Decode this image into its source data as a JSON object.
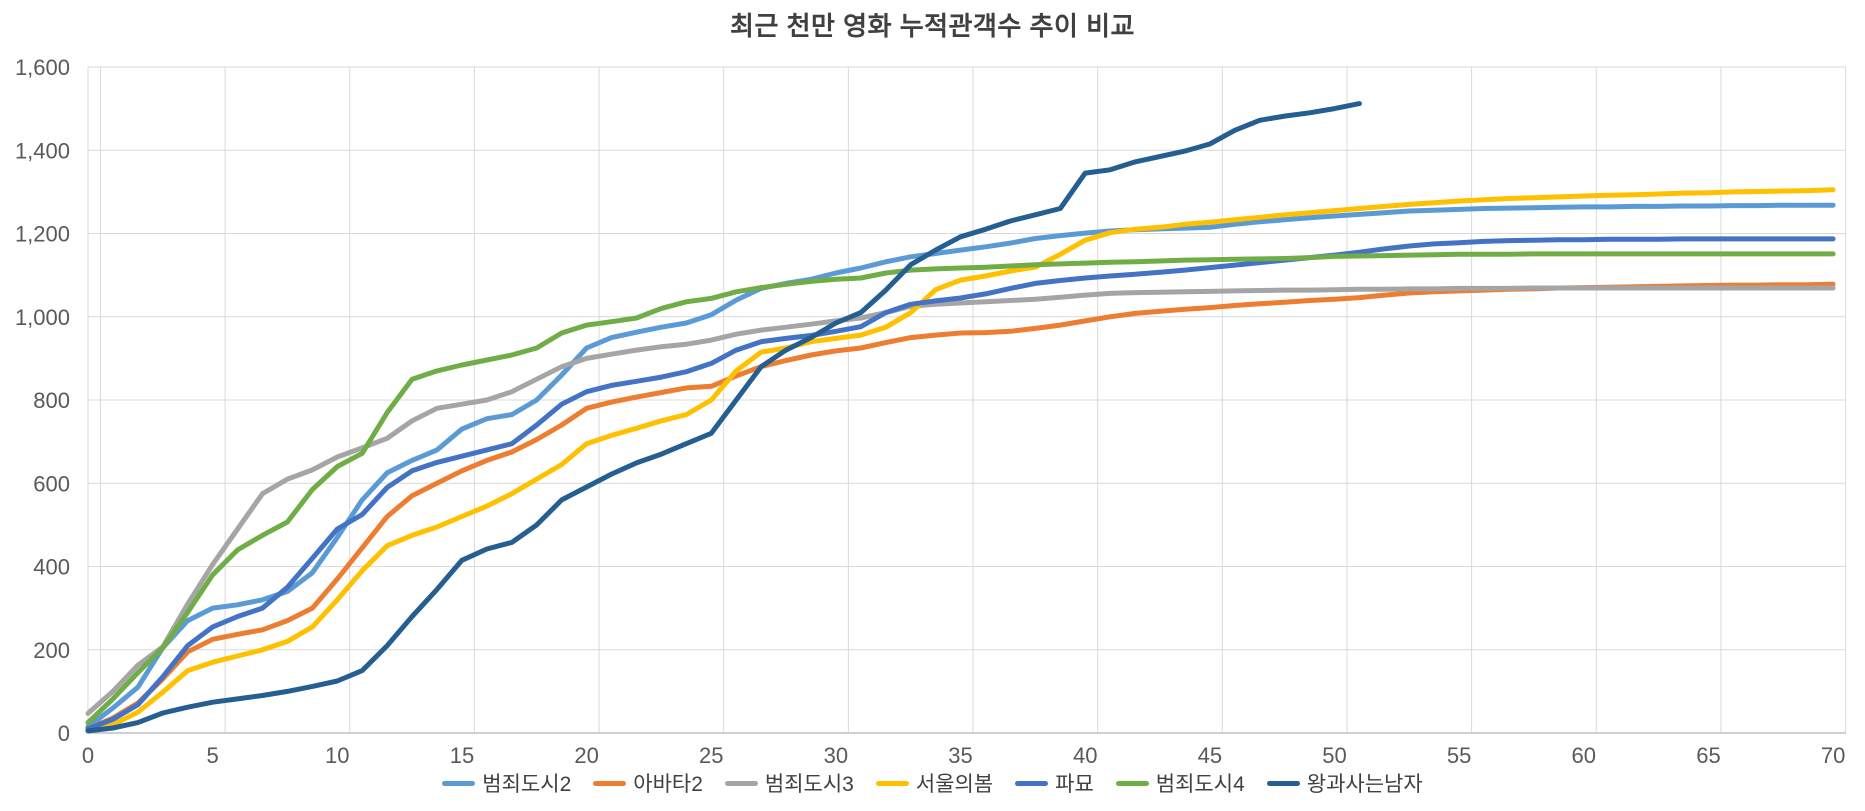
{
  "title": "최근 천만 영화 누적관객수 추이 비교",
  "colors": {
    "gridline": "#D9D9D9",
    "axis_line": "#BFBFBF",
    "tick_label": "#595959",
    "title_text": "#404040"
  },
  "chart_data": {
    "type": "line",
    "title": "최근 천만 영화 누적관객수 추이 비교",
    "xlabel": "",
    "ylabel": "",
    "xlim": [
      0,
      70
    ],
    "ylim": [
      0,
      1600
    ],
    "grid": true,
    "legend_position": "bottom",
    "x_ticks": [
      0,
      5,
      10,
      15,
      20,
      25,
      30,
      35,
      40,
      45,
      50,
      55,
      60,
      65,
      70
    ],
    "y_tick_labels": [
      "0",
      "200",
      "400",
      "600",
      "800",
      "1,000",
      "1,200",
      "1,400",
      "1,600"
    ],
    "y_tick_values": [
      0,
      200,
      400,
      600,
      800,
      1000,
      1200,
      1400,
      1600
    ],
    "series": [
      {
        "name": "범죄도시2",
        "slug": "crime-city-2",
        "color": "#5B9BD5",
        "start_x": 0,
        "values": [
          15,
          60,
          110,
          205,
          270,
          300,
          308,
          320,
          340,
          385,
          470,
          560,
          625,
          655,
          680,
          730,
          755,
          765,
          800,
          860,
          925,
          950,
          963,
          975,
          985,
          1005,
          1040,
          1068,
          1080,
          1090,
          1105,
          1117,
          1132,
          1144,
          1152,
          1160,
          1168,
          1177,
          1188,
          1195,
          1201,
          1206,
          1209,
          1211,
          1213,
          1215,
          1222,
          1228,
          1233,
          1238,
          1242,
          1246,
          1250,
          1254,
          1256,
          1258,
          1260,
          1261,
          1262,
          1263,
          1264,
          1264,
          1265,
          1265,
          1266,
          1266,
          1267,
          1267,
          1268,
          1268,
          1268
        ]
      },
      {
        "name": "아바타2",
        "slug": "avatar-2",
        "color": "#ED7D31",
        "start_x": 0,
        "values": [
          10,
          36,
          72,
          130,
          195,
          225,
          237,
          248,
          270,
          300,
          370,
          445,
          520,
          570,
          600,
          630,
          655,
          675,
          705,
          740,
          780,
          795,
          807,
          818,
          829,
          833,
          858,
          880,
          895,
          908,
          918,
          925,
          938,
          950,
          956,
          961,
          962,
          965,
          972,
          980,
          990,
          1000,
          1008,
          1013,
          1018,
          1022,
          1027,
          1031,
          1035,
          1039,
          1042,
          1046,
          1052,
          1057,
          1060,
          1062,
          1064,
          1066,
          1067,
          1069,
          1070,
          1071,
          1072,
          1073,
          1074,
          1075,
          1076,
          1076,
          1077,
          1077,
          1078
        ]
      },
      {
        "name": "범죄도시3",
        "slug": "crime-city-3",
        "color": "#A5A5A5",
        "start_x": 0,
        "values": [
          47,
          100,
          163,
          207,
          310,
          405,
          490,
          575,
          610,
          632,
          663,
          685,
          708,
          750,
          780,
          790,
          800,
          820,
          850,
          880,
          900,
          910,
          920,
          928,
          934,
          944,
          958,
          968,
          975,
          982,
          990,
          997,
          1010,
          1025,
          1030,
          1033,
          1036,
          1039,
          1042,
          1047,
          1052,
          1056,
          1058,
          1059,
          1060,
          1061,
          1062,
          1063,
          1064,
          1064,
          1065,
          1066,
          1066,
          1067,
          1067,
          1068,
          1068,
          1068,
          1069,
          1069,
          1069,
          1069,
          1069,
          1069,
          1069,
          1069,
          1069,
          1069,
          1069,
          1069,
          1069
        ]
      },
      {
        "name": "서울의봄",
        "slug": "seoul-spring",
        "color": "#FFC000",
        "start_x": 0,
        "values": [
          5,
          20,
          50,
          98,
          150,
          170,
          185,
          200,
          220,
          255,
          320,
          390,
          450,
          475,
          495,
          520,
          545,
          575,
          610,
          645,
          695,
          715,
          732,
          750,
          765,
          800,
          870,
          915,
          925,
          940,
          948,
          956,
          975,
          1010,
          1065,
          1088,
          1098,
          1110,
          1119,
          1150,
          1184,
          1202,
          1210,
          1215,
          1222,
          1227,
          1233,
          1239,
          1245,
          1250,
          1255,
          1260,
          1265,
          1270,
          1274,
          1278,
          1281,
          1284,
          1286,
          1288,
          1290,
          1292,
          1293,
          1295,
          1297,
          1298,
          1300,
          1301,
          1302,
          1303,
          1305
        ]
      },
      {
        "name": "파묘",
        "slug": "exhuma",
        "color": "#4472C4",
        "start_x": 0,
        "values": [
          10,
          33,
          68,
          135,
          210,
          255,
          280,
          300,
          350,
          420,
          490,
          525,
          590,
          630,
          650,
          665,
          680,
          695,
          740,
          790,
          820,
          835,
          845,
          855,
          868,
          888,
          920,
          940,
          948,
          955,
          965,
          976,
          1010,
          1030,
          1038,
          1045,
          1055,
          1068,
          1080,
          1087,
          1093,
          1098,
          1102,
          1107,
          1112,
          1118,
          1124,
          1130,
          1136,
          1142,
          1148,
          1155,
          1163,
          1170,
          1175,
          1178,
          1181,
          1183,
          1184,
          1185,
          1185,
          1186,
          1186,
          1186,
          1187,
          1187,
          1187,
          1187,
          1187,
          1187,
          1187
        ]
      },
      {
        "name": "범죄도시4",
        "slug": "crime-city-4",
        "color": "#70AD47",
        "start_x": 0,
        "values": [
          25,
          82,
          145,
          205,
          290,
          380,
          440,
          475,
          507,
          585,
          640,
          672,
          770,
          850,
          870,
          884,
          896,
          908,
          925,
          961,
          980,
          988,
          997,
          1020,
          1036,
          1044,
          1060,
          1070,
          1078,
          1085,
          1090,
          1093,
          1105,
          1112,
          1115,
          1117,
          1119,
          1122,
          1125,
          1127,
          1129,
          1131,
          1132,
          1134,
          1136,
          1137,
          1138,
          1139,
          1140,
          1142,
          1145,
          1146,
          1147,
          1148,
          1149,
          1150,
          1150,
          1150,
          1151,
          1151,
          1151,
          1151,
          1151,
          1151,
          1151,
          1151,
          1151,
          1151,
          1151,
          1151,
          1151
        ]
      },
      {
        "name": "왕과사는남자",
        "slug": "king-living-man",
        "color": "#255E91",
        "start_x": 0,
        "values": [
          5,
          12,
          25,
          48,
          62,
          74,
          82,
          90,
          100,
          112,
          125,
          150,
          210,
          280,
          345,
          415,
          442,
          458,
          500,
          560,
          591,
          622,
          649,
          670,
          695,
          720,
          800,
          880,
          920,
          950,
          985,
          1010,
          1064,
          1125,
          1160,
          1192,
          1210,
          1230,
          1245,
          1260,
          1345,
          1353,
          1372,
          1385,
          1398,
          1415,
          1448,
          1472,
          1482,
          1490,
          1500,
          1512
        ]
      }
    ]
  }
}
